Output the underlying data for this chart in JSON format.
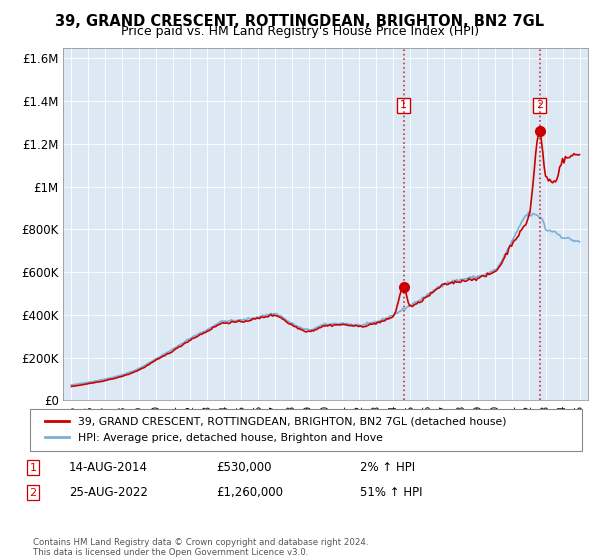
{
  "title": "39, GRAND CRESCENT, ROTTINGDEAN, BRIGHTON, BN2 7GL",
  "subtitle": "Price paid vs. HM Land Registry's House Price Index (HPI)",
  "legend_line1": "39, GRAND CRESCENT, ROTTINGDEAN, BRIGHTON, BN2 7GL (detached house)",
  "legend_line2": "HPI: Average price, detached house, Brighton and Hove",
  "annotation1_date": "14-AUG-2014",
  "annotation1_price": "£530,000",
  "annotation1_hpi": "2% ↑ HPI",
  "annotation2_date": "25-AUG-2022",
  "annotation2_price": "£1,260,000",
  "annotation2_hpi": "51% ↑ HPI",
  "footnote": "Contains HM Land Registry data © Crown copyright and database right 2024.\nThis data is licensed under the Open Government Licence v3.0.",
  "ylim": [
    0,
    1650000
  ],
  "yticks": [
    0,
    200000,
    400000,
    600000,
    800000,
    1000000,
    1200000,
    1400000,
    1600000
  ],
  "ytick_labels": [
    "£0",
    "£200K",
    "£400K",
    "£600K",
    "£800K",
    "£1M",
    "£1.2M",
    "£1.4M",
    "£1.6M"
  ],
  "bg_color": "#dce9f5",
  "hpi_color": "#7bafd4",
  "price_color": "#cc0000",
  "vline_color": "#cc0000",
  "marker1_x": 2014.62,
  "marker1_y": 530000,
  "marker2_x": 2022.65,
  "marker2_y": 1260000,
  "num1_y": 1380000,
  "num2_y": 1380000,
  "xmin": 1994.5,
  "xmax": 2025.5
}
